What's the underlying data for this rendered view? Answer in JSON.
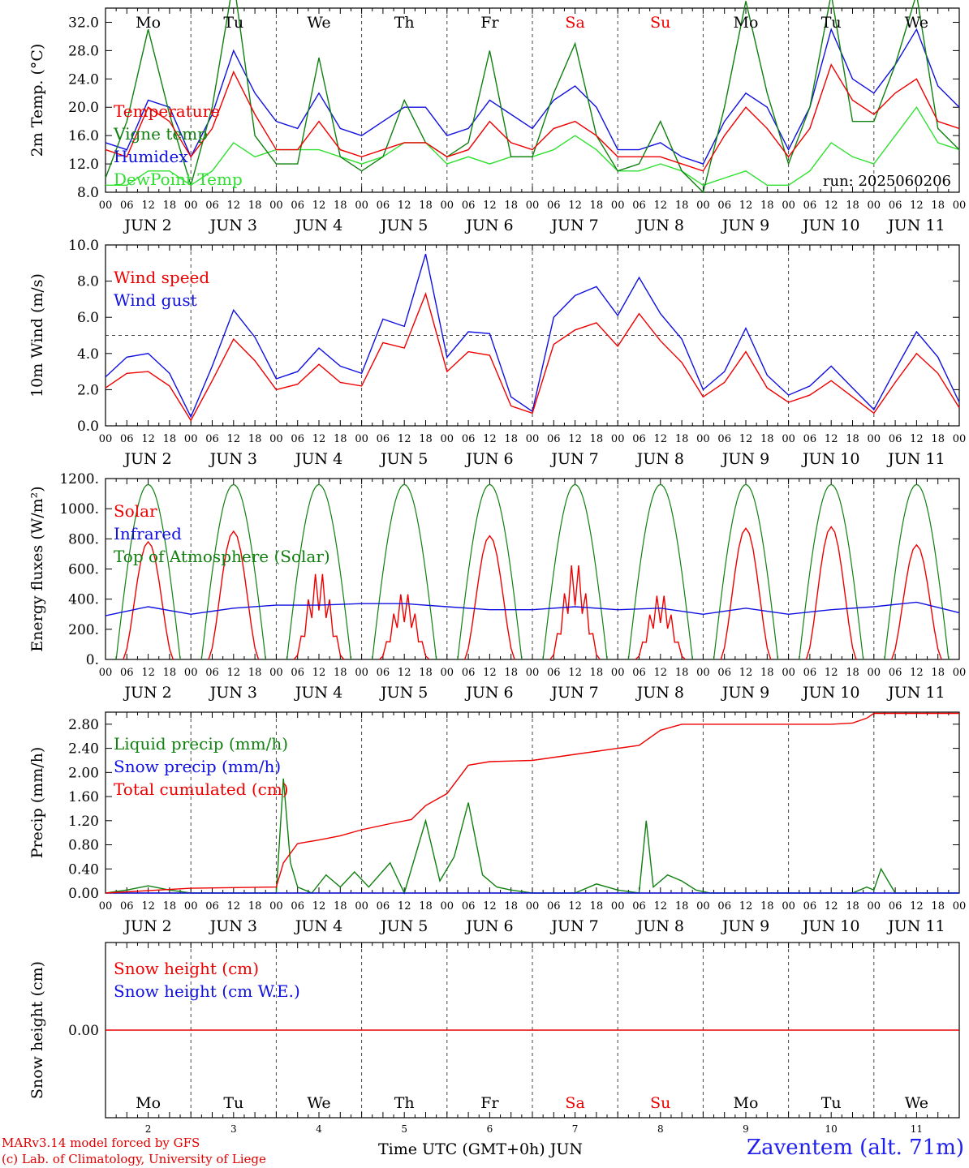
{
  "footer": {
    "model": "MARv3.14 model forced by GFS",
    "lab": "(c) Lab. of Climatology, University of Liege",
    "station": "Zaventem (alt. 71m)",
    "time_label": "Time UTC (GMT+0h) JUN"
  },
  "colors": {
    "red": "#ee0000",
    "green": "#108010",
    "blue": "#1010e0",
    "lightgreen": "#30e030",
    "weekend": "#ee0000"
  },
  "days": [
    {
      "wd": "Mo",
      "date": "2",
      "weekend": false
    },
    {
      "wd": "Tu",
      "date": "3",
      "weekend": false
    },
    {
      "wd": "We",
      "date": "4",
      "weekend": false
    },
    {
      "wd": "Th",
      "date": "5",
      "weekend": false
    },
    {
      "wd": "Fr",
      "date": "6",
      "weekend": false
    },
    {
      "wd": "Sa",
      "date": "7",
      "weekend": true
    },
    {
      "wd": "Su",
      "date": "8",
      "weekend": true
    },
    {
      "wd": "Mo",
      "date": "9",
      "weekend": false
    },
    {
      "wd": "Tu",
      "date": "10",
      "weekend": false
    },
    {
      "wd": "We",
      "date": "11",
      "weekend": false
    }
  ],
  "date_labels": [
    "JUN  2",
    "JUN  3",
    "JUN  4",
    "JUN  5",
    "JUN  6",
    "JUN  7",
    "JUN  8",
    "JUN  9",
    "JUN 10",
    "JUN 11"
  ],
  "hour_ticks": [
    "00",
    "06",
    "12",
    "18"
  ],
  "chart_data": [
    {
      "id": "temp",
      "type": "line",
      "ylabel": "2m Temp. (°C)",
      "ylim": [
        8,
        34
      ],
      "yticks": [
        "8.0",
        "12.0",
        "16.0",
        "20.0",
        "24.0",
        "28.0",
        "32.0"
      ],
      "run_label": "run: 2025060206",
      "x_unit": "hours since JUN 2 00 UTC",
      "series": [
        {
          "name": "Temperature",
          "color": "#ee0000",
          "x": [
            0,
            6,
            12,
            18,
            24,
            30,
            36,
            42,
            48,
            54,
            60,
            66,
            72,
            78,
            84,
            90,
            96,
            102,
            108,
            114,
            120,
            126,
            132,
            138,
            144,
            150,
            156,
            162,
            168,
            174,
            180,
            186,
            192,
            198,
            204,
            210,
            216,
            222,
            228,
            234,
            240
          ],
          "values": [
            14,
            13,
            20,
            18,
            13,
            17,
            25,
            19,
            14,
            14,
            18,
            14,
            13,
            14,
            15,
            15,
            13,
            14,
            18,
            15,
            14,
            17,
            18,
            16,
            13,
            13,
            13,
            12,
            11,
            16,
            20,
            17,
            13,
            17,
            26,
            21,
            19,
            22,
            24,
            18,
            17
          ]
        },
        {
          "name": "Vigne temp",
          "color": "#108010",
          "x": [
            0,
            6,
            12,
            18,
            24,
            30,
            36,
            42,
            48,
            54,
            60,
            66,
            72,
            78,
            84,
            90,
            96,
            102,
            108,
            114,
            120,
            126,
            132,
            138,
            144,
            150,
            156,
            162,
            168,
            174,
            180,
            186,
            192,
            198,
            204,
            210,
            216,
            222,
            228,
            234,
            240
          ],
          "values": [
            10,
            18,
            31,
            19,
            9,
            20,
            38,
            16,
            12,
            12,
            27,
            13,
            11,
            13,
            21,
            15,
            13,
            15,
            28,
            13,
            13,
            22,
            29,
            16,
            11,
            12,
            18,
            11,
            8,
            20,
            35,
            22,
            12,
            20,
            36,
            18,
            18,
            26,
            36,
            17,
            14
          ]
        },
        {
          "name": "Humidex",
          "color": "#1010e0",
          "x": [
            0,
            6,
            12,
            18,
            24,
            30,
            36,
            42,
            48,
            54,
            60,
            66,
            72,
            78,
            84,
            90,
            96,
            102,
            108,
            114,
            120,
            126,
            132,
            138,
            144,
            150,
            156,
            162,
            168,
            174,
            180,
            186,
            192,
            198,
            204,
            210,
            216,
            222,
            228,
            234,
            240
          ],
          "values": [
            15,
            14,
            21,
            20,
            13,
            19,
            28,
            22,
            18,
            17,
            22,
            17,
            16,
            18,
            20,
            20,
            16,
            17,
            21,
            19,
            17,
            21,
            23,
            20,
            14,
            14,
            15,
            13,
            12,
            18,
            22,
            20,
            14,
            20,
            31,
            24,
            22,
            26,
            31,
            23,
            20
          ]
        },
        {
          "name": "DewPoint Temp",
          "color": "#30e030",
          "x": [
            0,
            6,
            12,
            18,
            24,
            30,
            36,
            42,
            48,
            54,
            60,
            66,
            72,
            78,
            84,
            90,
            96,
            102,
            108,
            114,
            120,
            126,
            132,
            138,
            144,
            150,
            156,
            162,
            168,
            174,
            180,
            186,
            192,
            198,
            204,
            210,
            216,
            222,
            228,
            234,
            240
          ],
          "values": [
            9,
            9,
            11,
            11,
            9,
            11,
            15,
            13,
            14,
            14,
            14,
            13,
            12,
            13,
            15,
            15,
            12,
            13,
            12,
            13,
            13,
            14,
            16,
            14,
            11,
            11,
            12,
            11,
            9,
            10,
            11,
            9,
            9,
            11,
            15,
            13,
            12,
            16,
            20,
            15,
            14
          ]
        }
      ]
    },
    {
      "id": "wind",
      "type": "line",
      "ylabel": "10m Wind (m/s)",
      "ylim": [
        0,
        10
      ],
      "yticks": [
        "0.0",
        "2.0",
        "4.0",
        "6.0",
        "8.0",
        "10.0"
      ],
      "ref_line": 5,
      "series": [
        {
          "name": "Wind speed",
          "color": "#ee0000",
          "x": [
            0,
            6,
            12,
            18,
            24,
            30,
            36,
            42,
            48,
            54,
            60,
            66,
            72,
            78,
            84,
            90,
            96,
            102,
            108,
            114,
            120,
            126,
            132,
            138,
            144,
            150,
            156,
            162,
            168,
            174,
            180,
            186,
            192,
            198,
            204,
            210,
            216,
            222,
            228,
            234,
            240
          ],
          "values": [
            2.1,
            2.9,
            3.0,
            2.2,
            0.3,
            2.5,
            4.8,
            3.6,
            2.0,
            2.3,
            3.4,
            2.4,
            2.2,
            4.6,
            4.3,
            7.3,
            3.0,
            4.1,
            3.9,
            1.1,
            0.7,
            4.5,
            5.3,
            5.7,
            4.4,
            6.2,
            4.7,
            3.5,
            1.6,
            2.4,
            4.1,
            2.1,
            1.3,
            1.7,
            2.5,
            1.6,
            0.7,
            2.4,
            4.0,
            2.9,
            1.0
          ]
        },
        {
          "name": "Wind gust",
          "color": "#1010e0",
          "x": [
            0,
            6,
            12,
            18,
            24,
            30,
            36,
            42,
            48,
            54,
            60,
            66,
            72,
            78,
            84,
            90,
            96,
            102,
            108,
            114,
            120,
            126,
            132,
            138,
            144,
            150,
            156,
            162,
            168,
            174,
            180,
            186,
            192,
            198,
            204,
            210,
            216,
            222,
            228,
            234,
            240
          ],
          "values": [
            2.7,
            3.8,
            4.0,
            2.9,
            0.5,
            3.3,
            6.4,
            4.9,
            2.6,
            3.0,
            4.3,
            3.3,
            2.9,
            5.9,
            5.5,
            9.5,
            3.8,
            5.2,
            5.1,
            1.6,
            0.8,
            6.0,
            7.2,
            7.7,
            6.1,
            8.2,
            6.2,
            4.8,
            2.0,
            3.0,
            5.4,
            2.8,
            1.7,
            2.2,
            3.3,
            2.1,
            0.9,
            3.1,
            5.2,
            3.8,
            1.3
          ]
        }
      ]
    },
    {
      "id": "energy",
      "type": "line",
      "ylabel": "Energy fluxes (W/m²)",
      "ylim": [
        0,
        1200
      ],
      "yticks": [
        "0.",
        "200.",
        "400.",
        "600.",
        "800.",
        "1000.",
        "1200."
      ],
      "series": [
        {
          "name": "Solar",
          "color": "#ee0000",
          "peaks": [
            780,
            850,
            590,
            450,
            820,
            650,
            440,
            870,
            880,
            760
          ]
        },
        {
          "name": "Infrared",
          "color": "#1010e0",
          "x": [
            0,
            12,
            24,
            36,
            48,
            60,
            72,
            84,
            96,
            108,
            120,
            132,
            144,
            156,
            168,
            180,
            192,
            204,
            216,
            228,
            240
          ],
          "values": [
            290,
            350,
            300,
            340,
            360,
            360,
            370,
            370,
            350,
            330,
            330,
            350,
            330,
            340,
            300,
            340,
            300,
            330,
            350,
            380,
            310
          ]
        },
        {
          "name": "Top of Atmosphere (Solar)",
          "color": "#108010",
          "peak": 1160
        }
      ]
    },
    {
      "id": "precip",
      "type": "line",
      "ylabel": "Precip (mm/h)",
      "ylim": [
        0,
        3
      ],
      "yticks": [
        "0.00",
        "0.40",
        "0.80",
        "1.20",
        "1.60",
        "2.00",
        "2.40",
        "2.80"
      ],
      "series": [
        {
          "name": "Liquid precip (mm/h)",
          "color": "#108010",
          "x": [
            0,
            6,
            12,
            18,
            24,
            48,
            50,
            52,
            54,
            58,
            62,
            66,
            70,
            74,
            80,
            84,
            90,
            94,
            98,
            102,
            106,
            110,
            114,
            120,
            132,
            138,
            144,
            150,
            152,
            154,
            158,
            162,
            166,
            170,
            210,
            214,
            216,
            218,
            220,
            222,
            240
          ],
          "values": [
            0,
            0.05,
            0.12,
            0.05,
            0,
            0,
            1.9,
            0.5,
            0.1,
            0,
            0.3,
            0.1,
            0.35,
            0.1,
            0.5,
            0,
            1.2,
            0.2,
            0.6,
            1.5,
            0.3,
            0.1,
            0.05,
            0,
            0,
            0.15,
            0.05,
            0,
            1.2,
            0.1,
            0.3,
            0.2,
            0.05,
            0,
            0,
            0.1,
            0.05,
            0.4,
            0.2,
            0,
            0
          ]
        },
        {
          "name": "Snow precip (mm/h)",
          "color": "#1010e0",
          "x": [
            0,
            240
          ],
          "values": [
            0,
            0
          ]
        },
        {
          "name": "Total cumulated (cm)",
          "color": "#ee0000",
          "x": [
            0,
            24,
            48,
            50,
            54,
            60,
            66,
            72,
            80,
            86,
            90,
            96,
            102,
            108,
            120,
            132,
            144,
            150,
            156,
            162,
            168,
            180,
            192,
            204,
            210,
            214,
            216,
            240
          ],
          "values": [
            0,
            0.08,
            0.1,
            0.5,
            0.82,
            0.88,
            0.95,
            1.05,
            1.15,
            1.22,
            1.45,
            1.65,
            2.12,
            2.18,
            2.2,
            2.3,
            2.4,
            2.45,
            2.7,
            2.8,
            2.8,
            2.8,
            2.8,
            2.8,
            2.82,
            2.9,
            2.98,
            2.98
          ]
        }
      ]
    },
    {
      "id": "snow",
      "type": "line",
      "ylabel": "Snow height (cm)",
      "ytick": "0.00",
      "series": [
        {
          "name": "Snow height (cm)",
          "color": "#ee0000",
          "x": [
            0,
            240
          ],
          "values": [
            0,
            0
          ]
        },
        {
          "name": "Snow height (cm W.E.)",
          "color": "#1010e0",
          "x": [
            0,
            240
          ],
          "values": [
            0,
            0
          ]
        }
      ]
    }
  ]
}
